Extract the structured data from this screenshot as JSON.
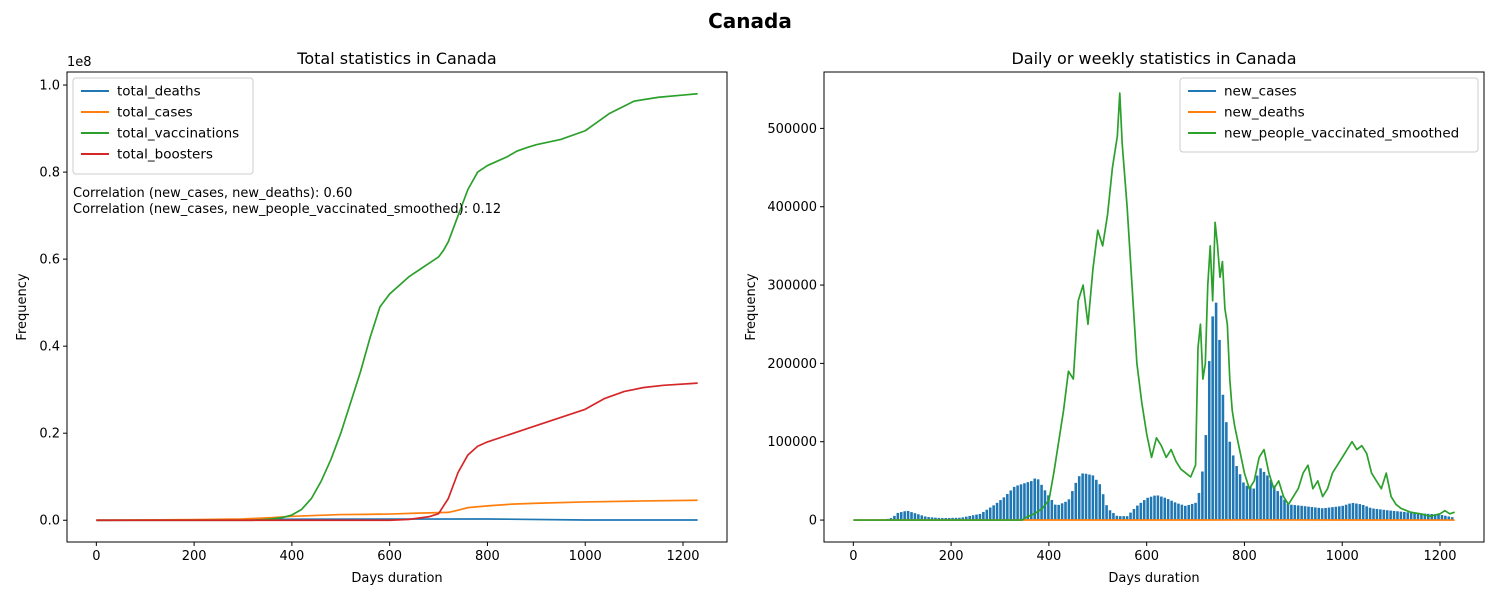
{
  "figure": {
    "title": "Canada"
  },
  "chart_data": [
    {
      "type": "line",
      "title": "Total statistics in Canada",
      "xlabel": "Days duration",
      "ylabel": "Frequency",
      "scale_label": "1e8",
      "xlim": [
        -60,
        1290
      ],
      "ylim": [
        -0.05,
        1.03
      ],
      "xticks": [
        0,
        200,
        400,
        600,
        800,
        1000,
        1200
      ],
      "yticks": [
        0.0,
        0.2,
        0.4,
        0.6,
        0.8,
        1.0
      ],
      "ytick_labels": [
        "0.0",
        "0.2",
        "0.4",
        "0.6",
        "0.8",
        "1.0"
      ],
      "legend_position": "upper-left",
      "annotations": [
        "Correlation (new_cases, new_deaths): 0.60",
        "Correlation (new_cases, new_people_vaccinated_smoothed): 0.12"
      ],
      "series": [
        {
          "name": "total_deaths",
          "color": "#1f77b4",
          "points": [
            [
              0,
              0
            ],
            [
              200,
              0.0002
            ],
            [
              400,
              0.0022
            ],
            [
              600,
              0.0027
            ],
            [
              800,
              0.0029
            ],
            [
              1000,
              0.0005
            ],
            [
              1230,
              0.0006
            ]
          ]
        },
        {
          "name": "total_cases",
          "color": "#ff7f0e",
          "points": [
            [
              0,
              0
            ],
            [
              100,
              0.0005
            ],
            [
              200,
              0.0015
            ],
            [
              300,
              0.003
            ],
            [
              360,
              0.006
            ],
            [
              400,
              0.009
            ],
            [
              450,
              0.011
            ],
            [
              500,
              0.013
            ],
            [
              550,
              0.0135
            ],
            [
              600,
              0.0142
            ],
            [
              650,
              0.016
            ],
            [
              700,
              0.0175
            ],
            [
              720,
              0.018
            ],
            [
              740,
              0.023
            ],
            [
              760,
              0.029
            ],
            [
              800,
              0.033
            ],
            [
              850,
              0.037
            ],
            [
              900,
              0.039
            ],
            [
              1000,
              0.042
            ],
            [
              1100,
              0.044
            ],
            [
              1230,
              0.046
            ]
          ]
        },
        {
          "name": "total_vaccinations",
          "color": "#2ca02c",
          "points": [
            [
              0,
              0
            ],
            [
              320,
              0
            ],
            [
              350,
              0.002
            ],
            [
              380,
              0.006
            ],
            [
              400,
              0.012
            ],
            [
              420,
              0.025
            ],
            [
              440,
              0.05
            ],
            [
              460,
              0.09
            ],
            [
              480,
              0.14
            ],
            [
              500,
              0.2
            ],
            [
              520,
              0.27
            ],
            [
              540,
              0.34
            ],
            [
              560,
              0.42
            ],
            [
              580,
              0.49
            ],
            [
              600,
              0.52
            ],
            [
              620,
              0.54
            ],
            [
              640,
              0.56
            ],
            [
              660,
              0.575
            ],
            [
              680,
              0.59
            ],
            [
              700,
              0.605
            ],
            [
              710,
              0.62
            ],
            [
              720,
              0.64
            ],
            [
              740,
              0.7
            ],
            [
              760,
              0.76
            ],
            [
              780,
              0.8
            ],
            [
              800,
              0.815
            ],
            [
              820,
              0.825
            ],
            [
              840,
              0.835
            ],
            [
              860,
              0.848
            ],
            [
              880,
              0.856
            ],
            [
              900,
              0.863
            ],
            [
              950,
              0.875
            ],
            [
              1000,
              0.895
            ],
            [
              1050,
              0.935
            ],
            [
              1100,
              0.963
            ],
            [
              1150,
              0.972
            ],
            [
              1200,
              0.977
            ],
            [
              1230,
              0.98
            ]
          ]
        },
        {
          "name": "total_boosters",
          "color": "#d62728",
          "points": [
            [
              0,
              0
            ],
            [
              600,
              0
            ],
            [
              640,
              0.002
            ],
            [
              680,
              0.008
            ],
            [
              700,
              0.015
            ],
            [
              720,
              0.05
            ],
            [
              740,
              0.11
            ],
            [
              760,
              0.15
            ],
            [
              780,
              0.17
            ],
            [
              800,
              0.18
            ],
            [
              840,
              0.195
            ],
            [
              880,
              0.21
            ],
            [
              920,
              0.225
            ],
            [
              960,
              0.24
            ],
            [
              1000,
              0.255
            ],
            [
              1040,
              0.28
            ],
            [
              1080,
              0.296
            ],
            [
              1120,
              0.305
            ],
            [
              1160,
              0.31
            ],
            [
              1230,
              0.315
            ]
          ]
        }
      ]
    },
    {
      "type": "line+bar",
      "title": "Daily or weekly statistics in Canada",
      "xlabel": "Days duration",
      "ylabel": "Frequency",
      "xlim": [
        -60,
        1290
      ],
      "ylim": [
        -28000,
        572000
      ],
      "xticks": [
        0,
        200,
        400,
        600,
        800,
        1000,
        1200
      ],
      "yticks": [
        0,
        100000,
        200000,
        300000,
        400000,
        500000
      ],
      "legend_position": "upper-right",
      "series": [
        {
          "name": "new_cases",
          "color": "#1f77b4",
          "kind": "bar",
          "bar_step": 7,
          "points": [
            [
              0,
              0
            ],
            [
              60,
              0
            ],
            [
              80,
              3000
            ],
            [
              90,
              9000
            ],
            [
              110,
              12000
            ],
            [
              130,
              8000
            ],
            [
              150,
              4000
            ],
            [
              180,
              2500
            ],
            [
              220,
              3000
            ],
            [
              260,
              8000
            ],
            [
              290,
              20000
            ],
            [
              310,
              30000
            ],
            [
              330,
              43000
            ],
            [
              350,
              47000
            ],
            [
              365,
              50000
            ],
            [
              375,
              55000
            ],
            [
              395,
              35000
            ],
            [
              415,
              18000
            ],
            [
              440,
              25000
            ],
            [
              460,
              55000
            ],
            [
              470,
              60000
            ],
            [
              490,
              57000
            ],
            [
              505,
              45000
            ],
            [
              520,
              15000
            ],
            [
              540,
              5000
            ],
            [
              560,
              5000
            ],
            [
              580,
              18000
            ],
            [
              600,
              28000
            ],
            [
              620,
              32000
            ],
            [
              640,
              28000
            ],
            [
              660,
              22000
            ],
            [
              680,
              18000
            ],
            [
              700,
              22000
            ],
            [
              710,
              40000
            ],
            [
              720,
              95000
            ],
            [
              730,
              230000
            ],
            [
              740,
              290000
            ],
            [
              748,
              240000
            ],
            [
              756,
              160000
            ],
            [
              766,
              110000
            ],
            [
              780,
              75000
            ],
            [
              800,
              45000
            ],
            [
              820,
              40000
            ],
            [
              830,
              68000
            ],
            [
              850,
              55000
            ],
            [
              870,
              35000
            ],
            [
              890,
              20000
            ],
            [
              920,
              18000
            ],
            [
              960,
              15000
            ],
            [
              1000,
              18000
            ],
            [
              1020,
              22000
            ],
            [
              1040,
              20000
            ],
            [
              1060,
              15000
            ],
            [
              1100,
              12000
            ],
            [
              1150,
              9000
            ],
            [
              1200,
              7000
            ],
            [
              1230,
              3000
            ]
          ]
        },
        {
          "name": "new_deaths",
          "color": "#ff7f0e",
          "kind": "line",
          "points": [
            [
              0,
              0
            ],
            [
              100,
              60
            ],
            [
              300,
              100
            ],
            [
              500,
              80
            ],
            [
              700,
              60
            ],
            [
              800,
              160
            ],
            [
              1000,
              60
            ],
            [
              1230,
              30
            ]
          ]
        },
        {
          "name": "new_people_vaccinated_smoothed",
          "color": "#2ca02c",
          "kind": "line",
          "points": [
            [
              0,
              0
            ],
            [
              345,
              0
            ],
            [
              355,
              4000
            ],
            [
              370,
              8000
            ],
            [
              385,
              14000
            ],
            [
              400,
              25000
            ],
            [
              410,
              60000
            ],
            [
              420,
              100000
            ],
            [
              430,
              140000
            ],
            [
              440,
              190000
            ],
            [
              450,
              180000
            ],
            [
              460,
              280000
            ],
            [
              470,
              300000
            ],
            [
              480,
              250000
            ],
            [
              490,
              320000
            ],
            [
              500,
              370000
            ],
            [
              510,
              350000
            ],
            [
              520,
              390000
            ],
            [
              530,
              450000
            ],
            [
              540,
              490000
            ],
            [
              545,
              545000
            ],
            [
              550,
              480000
            ],
            [
              560,
              400000
            ],
            [
              570,
              300000
            ],
            [
              580,
              200000
            ],
            [
              590,
              150000
            ],
            [
              600,
              110000
            ],
            [
              610,
              80000
            ],
            [
              620,
              105000
            ],
            [
              630,
              95000
            ],
            [
              640,
              80000
            ],
            [
              650,
              90000
            ],
            [
              660,
              75000
            ],
            [
              670,
              65000
            ],
            [
              680,
              60000
            ],
            [
              690,
              55000
            ],
            [
              700,
              70000
            ],
            [
              705,
              220000
            ],
            [
              710,
              250000
            ],
            [
              715,
              180000
            ],
            [
              720,
              200000
            ],
            [
              725,
              300000
            ],
            [
              730,
              350000
            ],
            [
              735,
              280000
            ],
            [
              740,
              380000
            ],
            [
              745,
              350000
            ],
            [
              750,
              310000
            ],
            [
              755,
              330000
            ],
            [
              760,
              270000
            ],
            [
              765,
              250000
            ],
            [
              770,
              180000
            ],
            [
              775,
              140000
            ],
            [
              780,
              120000
            ],
            [
              790,
              90000
            ],
            [
              800,
              60000
            ],
            [
              810,
              40000
            ],
            [
              820,
              50000
            ],
            [
              830,
              80000
            ],
            [
              840,
              90000
            ],
            [
              850,
              60000
            ],
            [
              860,
              40000
            ],
            [
              870,
              50000
            ],
            [
              880,
              30000
            ],
            [
              890,
              20000
            ],
            [
              900,
              30000
            ],
            [
              910,
              40000
            ],
            [
              920,
              60000
            ],
            [
              930,
              70000
            ],
            [
              940,
              40000
            ],
            [
              950,
              50000
            ],
            [
              960,
              30000
            ],
            [
              970,
              40000
            ],
            [
              980,
              60000
            ],
            [
              990,
              70000
            ],
            [
              1000,
              80000
            ],
            [
              1010,
              90000
            ],
            [
              1020,
              100000
            ],
            [
              1030,
              90000
            ],
            [
              1040,
              95000
            ],
            [
              1050,
              85000
            ],
            [
              1060,
              60000
            ],
            [
              1070,
              50000
            ],
            [
              1080,
              40000
            ],
            [
              1090,
              60000
            ],
            [
              1100,
              30000
            ],
            [
              1110,
              20000
            ],
            [
              1120,
              15000
            ],
            [
              1140,
              10000
            ],
            [
              1160,
              8000
            ],
            [
              1180,
              5000
            ],
            [
              1200,
              8000
            ],
            [
              1210,
              12000
            ],
            [
              1220,
              8000
            ],
            [
              1230,
              10000
            ]
          ]
        }
      ]
    }
  ]
}
